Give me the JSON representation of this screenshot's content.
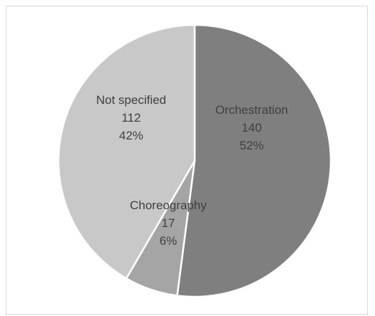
{
  "chart_data": {
    "type": "pie",
    "slices": [
      {
        "label": "Orchestration",
        "value": 140,
        "percent": "52%",
        "color": "#7f7f7f"
      },
      {
        "label": "Choreography",
        "value": 17,
        "percent": "6%",
        "color": "#a5a5a5"
      },
      {
        "label": "Not specified",
        "value": 112,
        "percent": "42%",
        "color": "#c8c8c8"
      }
    ],
    "slice_border_color": "#ffffff",
    "label_color": "#404040"
  }
}
